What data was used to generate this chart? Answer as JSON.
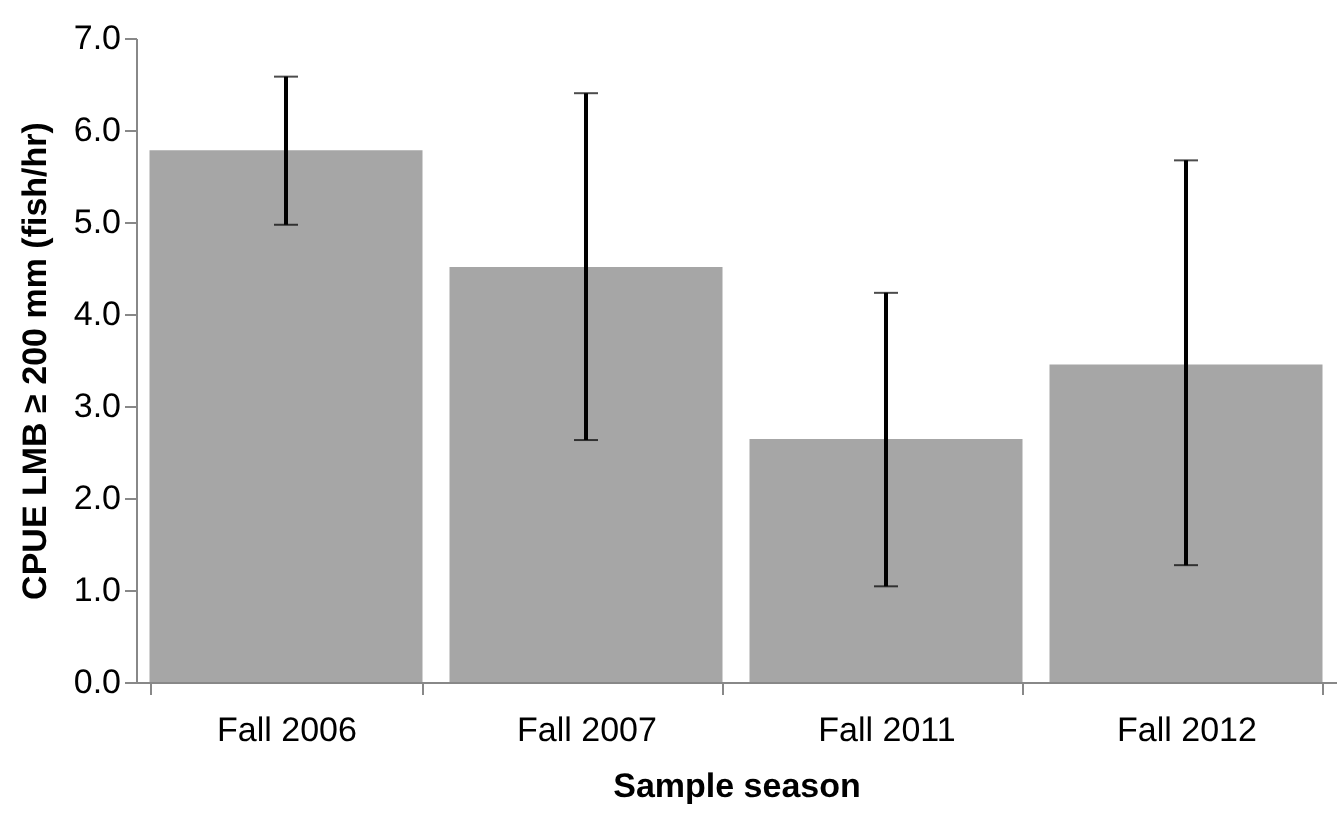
{
  "chart_data": {
    "type": "bar",
    "xlabel": "Sample season",
    "ylabel": "CPUE LMB ≥ 200 mm (fish/hr)",
    "categories": [
      "Fall 2006",
      "Fall 2007",
      "Fall 2011",
      "Fall 2012"
    ],
    "values": [
      5.78,
      4.51,
      2.64,
      3.45
    ],
    "errors": [
      [
        4.97,
        6.58
      ],
      [
        2.63,
        6.4
      ],
      [
        1.04,
        4.23
      ],
      [
        1.27,
        5.67
      ]
    ],
    "color": "#a6a6a6",
    "ylim": [
      0,
      7
    ],
    "yticks": [
      {
        "value": 0,
        "label": "0.0"
      },
      {
        "value": 1,
        "label": "1.0"
      },
      {
        "value": 2,
        "label": "2.0"
      },
      {
        "value": 3,
        "label": "3.0"
      },
      {
        "value": 4,
        "label": "4.0"
      },
      {
        "value": 5,
        "label": "5.0"
      },
      {
        "value": 6,
        "label": "6.0"
      },
      {
        "value": 7,
        "label": "7.0"
      }
    ],
    "grid": false
  }
}
